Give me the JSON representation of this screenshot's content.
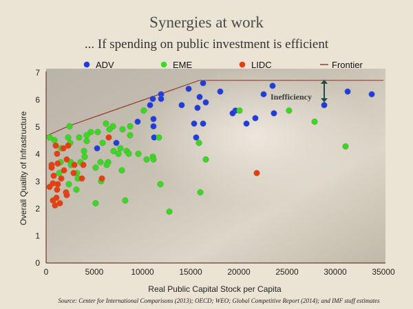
{
  "title": "Synergies at work",
  "subtitle": "... If spending on public investment is efficient",
  "source": "Source: Center for International Comparisons (2013); OECD; WEO; Global Competitive Report  (2014); and IMF staff estimates",
  "chart_data": {
    "type": "scatter",
    "xlabel": "Real Public Capital Stock per Capita",
    "ylabel": "Overall Quality of Infrastructure",
    "xlim": [
      0,
      35000
    ],
    "ylim": [
      0,
      7
    ],
    "xticks": [
      "0",
      "5000",
      "10000",
      "15000",
      "20000",
      "25000",
      "30000",
      "35000"
    ],
    "yticks": [
      "0",
      "1",
      "2",
      "3",
      "4",
      "5",
      "6",
      "7"
    ],
    "grid": false,
    "legend_placement": "top",
    "annotation": "Inefficiency",
    "series": [
      {
        "name": "ADV",
        "color": "#1a3cf0",
        "points": [
          [
            16290,
            6.62
          ],
          [
            18070,
            6.31
          ],
          [
            14790,
            6.41
          ],
          [
            15930,
            6.11
          ],
          [
            16570,
            5.91
          ],
          [
            14070,
            5.81
          ],
          [
            15710,
            5.71
          ],
          [
            11930,
            6.21
          ],
          [
            11070,
            6.04
          ],
          [
            11930,
            6.04
          ],
          [
            10790,
            5.81
          ],
          [
            9500,
            5.2
          ],
          [
            11140,
            5.3
          ],
          [
            11140,
            5.03
          ],
          [
            11210,
            4.62
          ],
          [
            15360,
            5.13
          ],
          [
            16290,
            5.13
          ],
          [
            15570,
            4.62
          ],
          [
            7290,
            4.42
          ],
          [
            5290,
            4.22
          ],
          [
            23500,
            6.52
          ],
          [
            22570,
            6.21
          ],
          [
            19640,
            5.61
          ],
          [
            19360,
            5.51
          ],
          [
            21710,
            5.33
          ],
          [
            20790,
            5.13
          ],
          [
            23640,
            5.51
          ],
          [
            28860,
            5.81
          ],
          [
            31290,
            6.31
          ],
          [
            33790,
            6.21
          ]
        ]
      },
      {
        "name": "EME",
        "color": "#2ee01a",
        "points": [
          [
            10140,
            5.61
          ],
          [
            2430,
            5.03
          ],
          [
            6210,
            5.13
          ],
          [
            6930,
            5.03
          ],
          [
            6570,
            4.92
          ],
          [
            7930,
            4.92
          ],
          [
            8710,
            5.03
          ],
          [
            8710,
            4.7
          ],
          [
            4640,
            4.82
          ],
          [
            5360,
            4.82
          ],
          [
            4210,
            4.7
          ],
          [
            3430,
            4.62
          ],
          [
            2290,
            4.62
          ],
          [
            360,
            4.62
          ],
          [
            860,
            4.52
          ],
          [
            4210,
            4.49
          ],
          [
            2500,
            4.42
          ],
          [
            11710,
            4.62
          ],
          [
            5860,
            4.42
          ],
          [
            1570,
            4.22
          ],
          [
            3930,
            4.12
          ],
          [
            7710,
            4.22
          ],
          [
            7000,
            4.12
          ],
          [
            4000,
            3.91
          ],
          [
            7500,
            4.02
          ],
          [
            8360,
            4.12
          ],
          [
            8570,
            4.02
          ],
          [
            9570,
            4.02
          ],
          [
            11070,
            3.91
          ],
          [
            10430,
            3.81
          ],
          [
            11140,
            3.81
          ],
          [
            15860,
            4.42
          ],
          [
            16570,
            3.81
          ],
          [
            2570,
            3.71
          ],
          [
            1500,
            3.71
          ],
          [
            3570,
            3.71
          ],
          [
            5640,
            3.71
          ],
          [
            6430,
            3.71
          ],
          [
            6290,
            3.61
          ],
          [
            2570,
            3.61
          ],
          [
            5140,
            3.51
          ],
          [
            7860,
            3.41
          ],
          [
            1360,
            3.31
          ],
          [
            3210,
            3.31
          ],
          [
            3290,
            3.11
          ],
          [
            5710,
            3.01
          ],
          [
            2360,
            2.9
          ],
          [
            3140,
            2.7
          ],
          [
            11860,
            2.9
          ],
          [
            16000,
            2.6
          ],
          [
            5140,
            2.2
          ],
          [
            8210,
            2.3
          ],
          [
            12790,
            1.89
          ],
          [
            20070,
            5.61
          ],
          [
            25210,
            5.61
          ],
          [
            27860,
            5.2
          ],
          [
            31070,
            4.29
          ]
        ]
      },
      {
        "name": "LIDC",
        "color": "#f03a0a",
        "points": [
          [
            21860,
            3.31
          ],
          [
            6500,
            4.62
          ],
          [
            1000,
            4.32
          ],
          [
            1790,
            4.22
          ],
          [
            2290,
            4.32
          ],
          [
            1140,
            4.02
          ],
          [
            2140,
            3.81
          ],
          [
            570,
            3.61
          ],
          [
            570,
            3.51
          ],
          [
            1210,
            3.66
          ],
          [
            1860,
            3.41
          ],
          [
            2930,
            3.61
          ],
          [
            3860,
            3.61
          ],
          [
            2860,
            3.31
          ],
          [
            790,
            3.21
          ],
          [
            1570,
            3.11
          ],
          [
            3710,
            3.11
          ],
          [
            5790,
            3.11
          ],
          [
            710,
            2.93
          ],
          [
            1210,
            2.9
          ],
          [
            360,
            2.8
          ],
          [
            1140,
            2.7
          ],
          [
            2070,
            2.6
          ],
          [
            2140,
            2.5
          ],
          [
            1070,
            2.4
          ],
          [
            710,
            2.3
          ],
          [
            1430,
            2.2
          ],
          [
            930,
            2.12
          ]
        ]
      },
      {
        "name": "Frontier",
        "type": "line",
        "color": "#9a3a2e",
        "points": [
          [
            0,
            4.67
          ],
          [
            2400,
            5.05
          ],
          [
            15900,
            6.72
          ],
          [
            35000,
            6.72
          ]
        ]
      }
    ]
  }
}
